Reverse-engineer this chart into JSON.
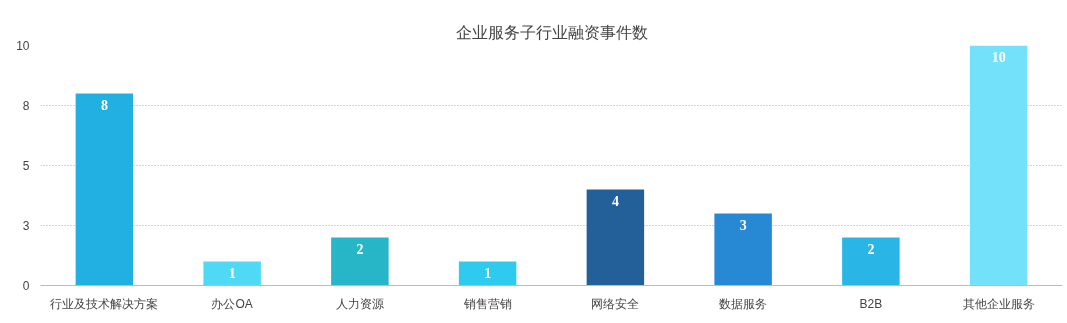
{
  "chart_data": {
    "type": "bar",
    "title": "企业服务子行业融资事件数",
    "categories": [
      "行业及技术解决方案",
      "办公OA",
      "人力资源",
      "销售营销",
      "网络安全",
      "数据服务",
      "B2B",
      "其他企业服务"
    ],
    "values": [
      8,
      1,
      2,
      1,
      4,
      3,
      2,
      10
    ],
    "colors": [
      "#22b0e2",
      "#4fd9f5",
      "#27b5c8",
      "#2ecbef",
      "#23609a",
      "#2789d4",
      "#29b6e6",
      "#74e1fb"
    ],
    "ylim": [
      0,
      10
    ],
    "yticks": [
      0,
      {
        "value": 2.5,
        "label": "3"
      },
      5,
      {
        "value": 7.5,
        "label": "8"
      },
      10
    ],
    "grid": "y",
    "data_labels": true
  }
}
